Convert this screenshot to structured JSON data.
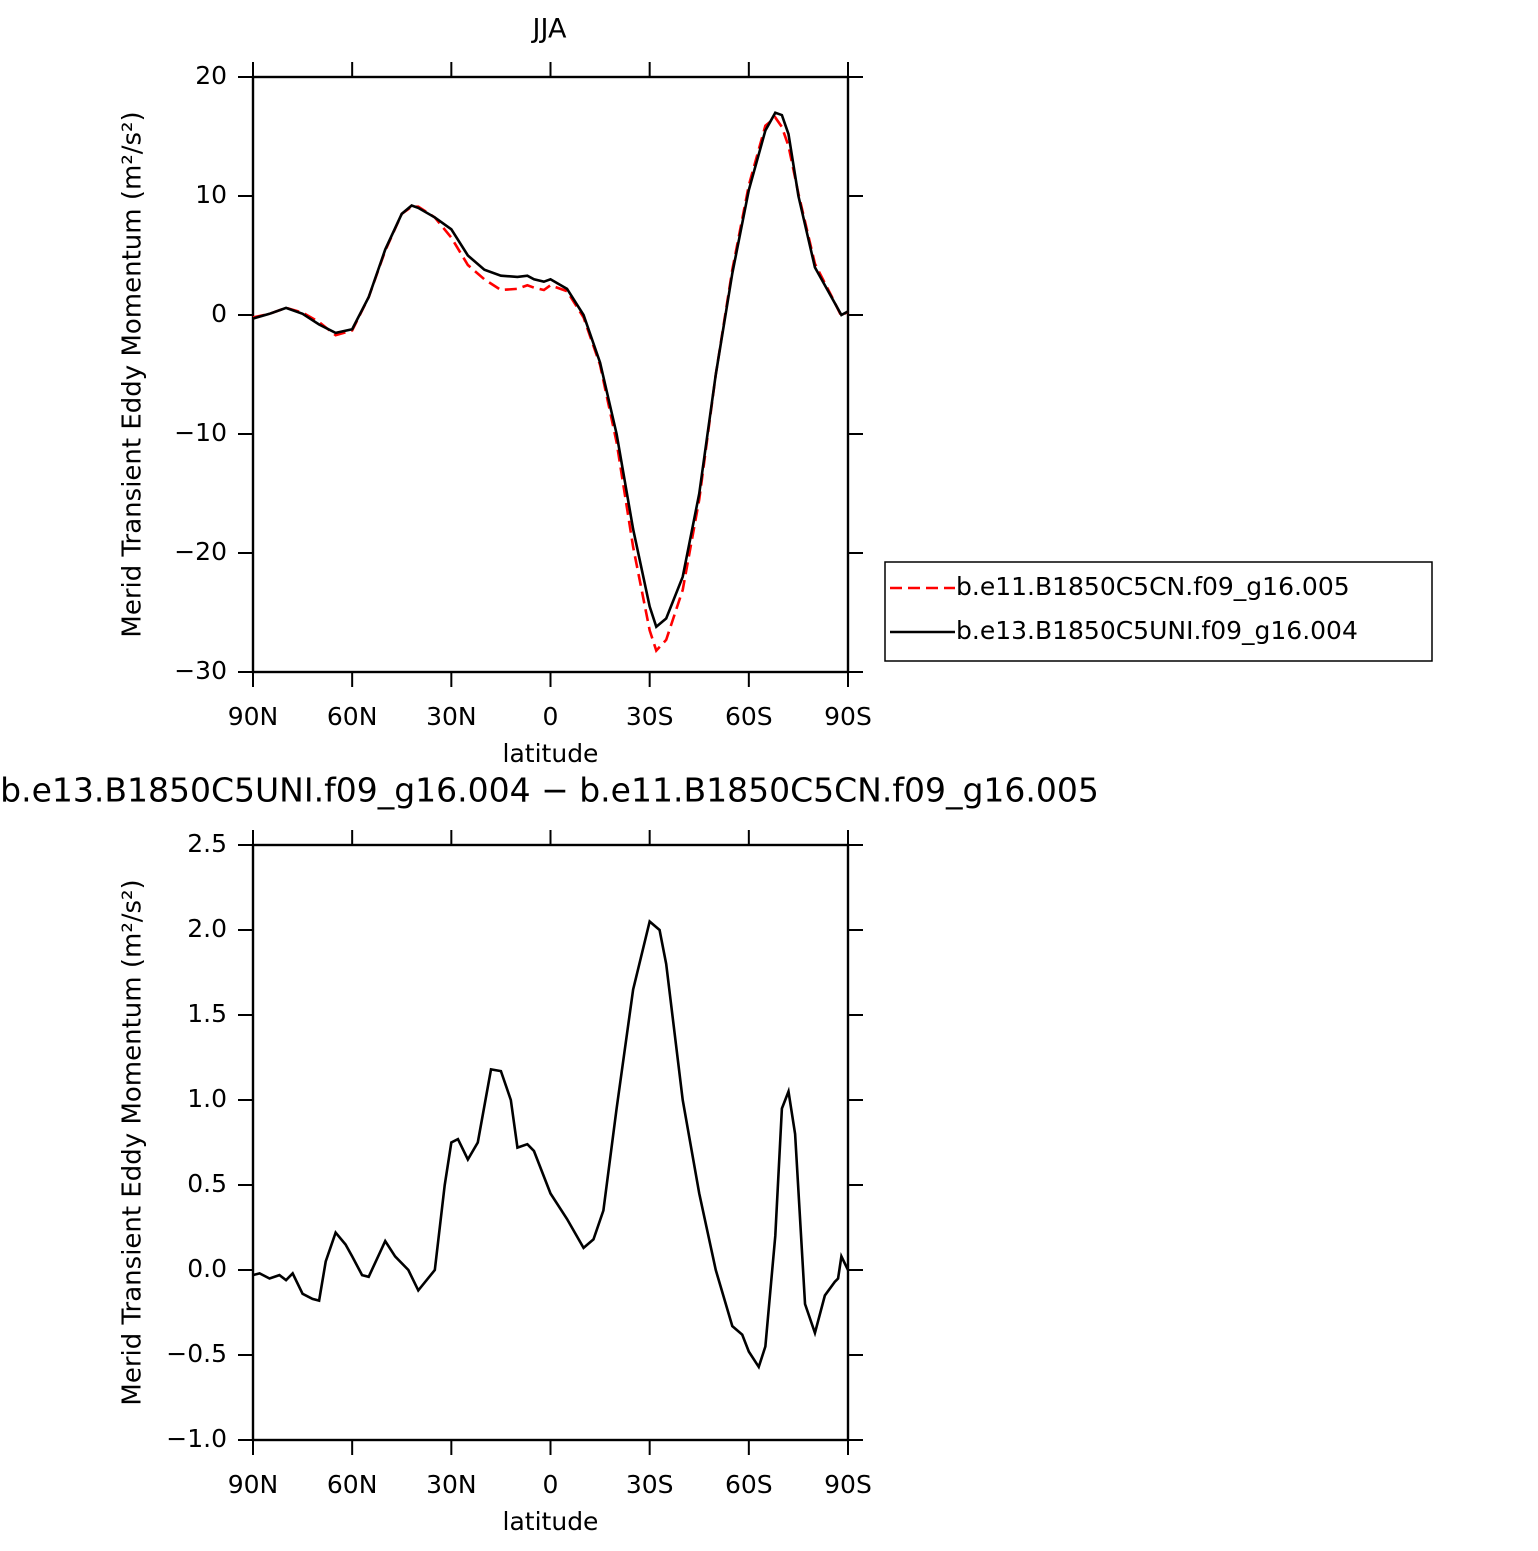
{
  "chart_data": [
    {
      "type": "line",
      "title": "JJA",
      "xlabel": "latitude",
      "ylabel": "Merid Transient Eddy Momentum (m²/s²)",
      "x": [
        90,
        85,
        80,
        75,
        70,
        65,
        60,
        55,
        50,
        45,
        42,
        40,
        35,
        30,
        25,
        20,
        15,
        10,
        7,
        5,
        2,
        0,
        -5,
        -10,
        -15,
        -20,
        -25,
        -30,
        -32,
        -35,
        -40,
        -45,
        -50,
        -55,
        -60,
        -65,
        -68,
        -70,
        -72,
        -75,
        -80,
        -85,
        -88,
        -90
      ],
      "series": [
        {
          "name": "b.e11.B1850C5CN.f09_g16.005",
          "color": "#ff0000",
          "dash": "dashed",
          "values": [
            -0.2,
            0.1,
            0.6,
            0.2,
            -0.6,
            -1.7,
            -1.3,
            1.5,
            5.4,
            8.5,
            9.1,
            9.1,
            8.2,
            6.5,
            4.2,
            3.0,
            2.1,
            2.2,
            2.5,
            2.3,
            2.1,
            2.5,
            2.0,
            -0.2,
            -4.2,
            -10.7,
            -19.5,
            -26.5,
            -28.2,
            -27.3,
            -23.1,
            -15.5,
            -5.0,
            3.8,
            10.9,
            15.9,
            16.6,
            15.8,
            14.2,
            10.2,
            4.3,
            1.6,
            -0.1,
            0.3
          ]
        },
        {
          "name": "b.e13.B1850C5UNI.f09_g16.004",
          "color": "#000000",
          "dash": "solid",
          "values": [
            -0.3,
            0.1,
            0.6,
            0.1,
            -0.8,
            -1.5,
            -1.2,
            1.5,
            5.5,
            8.5,
            9.2,
            9.0,
            8.2,
            7.2,
            5.0,
            3.8,
            3.3,
            3.2,
            3.3,
            3.0,
            2.8,
            3.0,
            2.2,
            0,
            -4,
            -10,
            -18,
            -24.5,
            -26.2,
            -25.5,
            -22,
            -15,
            -5,
            3.5,
            10.5,
            15.5,
            17.0,
            16.8,
            15.2,
            10,
            4,
            1.5,
            0,
            0.3
          ]
        }
      ],
      "xlim": [
        90,
        -90
      ],
      "xticks": [
        {
          "value": 90,
          "label": "90N"
        },
        {
          "value": 60,
          "label": "60N"
        },
        {
          "value": 30,
          "label": "30N"
        },
        0,
        {
          "value": -30,
          "label": "30S"
        },
        {
          "value": -60,
          "label": "60S"
        },
        {
          "value": -90,
          "label": "90S"
        }
      ],
      "ylim": [
        -30,
        20
      ],
      "yticks": [
        {
          "value": -30,
          "label": "−30"
        },
        {
          "value": -20,
          "label": "−20"
        },
        {
          "value": -10,
          "label": "−10"
        },
        0,
        10,
        20
      ],
      "legend": "right"
    },
    {
      "type": "line",
      "title": "b.e13.B1850C5UNI.f09_g16.004 − b.e11.B1850C5CN.f09_g16.005",
      "xlabel": "latitude",
      "ylabel": "Merid Transient Eddy Momentum (m²/s²)",
      "x": [
        90,
        88,
        85,
        82,
        80,
        78,
        75,
        72,
        70,
        68,
        65,
        62,
        60,
        57,
        55,
        50,
        47,
        43,
        40,
        35,
        32,
        30,
        28,
        25,
        22,
        18,
        15,
        12,
        10,
        7,
        5,
        2,
        0,
        -5,
        -10,
        -13,
        -16,
        -20,
        -25,
        -30,
        -33,
        -35,
        -40,
        -45,
        -50,
        -55,
        -58,
        -60,
        -63,
        -65,
        -68,
        -70,
        -72,
        -74,
        -77,
        -80,
        -83,
        -86,
        -87,
        -88,
        -90
      ],
      "series": [
        {
          "color": "#000000",
          "dash": "solid",
          "values": [
            -0.03,
            -0.02,
            -0.05,
            -0.03,
            -0.06,
            -0.02,
            -0.14,
            -0.17,
            -0.18,
            0.05,
            0.22,
            0.15,
            0.08,
            -0.03,
            -0.04,
            0.17,
            0.08,
            0.0,
            -0.12,
            0.0,
            0.5,
            0.75,
            0.77,
            0.65,
            0.75,
            1.18,
            1.17,
            1.0,
            0.72,
            0.74,
            0.7,
            0.55,
            0.45,
            0.3,
            0.13,
            0.18,
            0.35,
            0.95,
            1.65,
            2.05,
            2.0,
            1.8,
            1.0,
            0.45,
            0.0,
            -0.33,
            -0.38,
            -0.48,
            -0.57,
            -0.45,
            0.2,
            0.95,
            1.05,
            0.8,
            -0.2,
            -0.37,
            -0.15,
            -0.07,
            -0.05,
            0.08,
            0.0
          ]
        }
      ],
      "xlim": [
        90,
        -90
      ],
      "xticks": [
        {
          "value": 90,
          "label": "90N"
        },
        {
          "value": 60,
          "label": "60N"
        },
        {
          "value": 30,
          "label": "30N"
        },
        0,
        {
          "value": -30,
          "label": "30S"
        },
        {
          "value": -60,
          "label": "60S"
        },
        {
          "value": -90,
          "label": "90S"
        }
      ],
      "ylim": [
        -1.0,
        2.5
      ],
      "yticks": [
        {
          "value": -1.0,
          "label": "−1.0"
        },
        {
          "value": -0.5,
          "label": "−0.5"
        },
        {
          "value": 0,
          "label": "0.0"
        },
        0.5,
        {
          "value": 1.0,
          "label": "1.0"
        },
        1.5,
        {
          "value": 2.0,
          "label": "2.0"
        },
        2.5
      ]
    }
  ]
}
